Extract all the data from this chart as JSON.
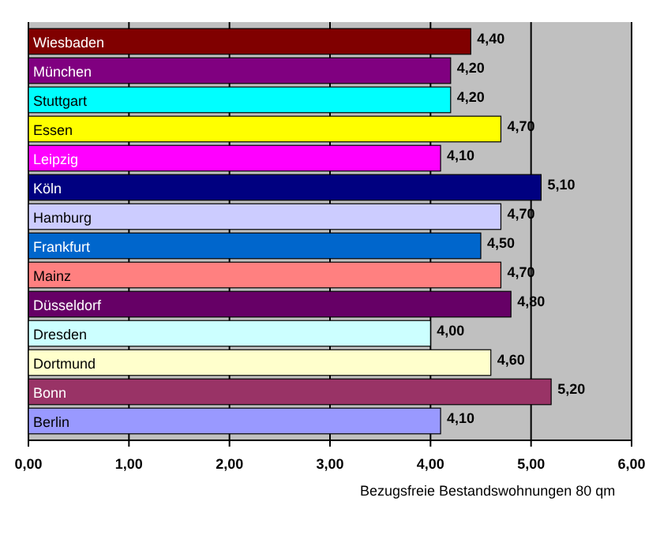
{
  "chart_data": {
    "type": "bar",
    "orientation": "horizontal",
    "categories": [
      "Wiesbaden",
      "München",
      "Stuttgart",
      "Essen",
      "Leipzig",
      "Köln",
      "Hamburg",
      "Frankfurt",
      "Mainz",
      "Düsseldorf",
      "Dresden",
      "Dortmund",
      "Bonn",
      "Berlin"
    ],
    "values": [
      4.4,
      4.2,
      4.2,
      4.7,
      4.1,
      5.1,
      4.7,
      4.5,
      4.7,
      4.8,
      4.0,
      4.6,
      5.2,
      4.1
    ],
    "colors": [
      "#800000",
      "#800080",
      "#00ffff",
      "#ffff00",
      "#ff00ff",
      "#000080",
      "#ccccff",
      "#0066cc",
      "#ff8080",
      "#660066",
      "#ccffff",
      "#ffffcc",
      "#993366",
      "#9999ff"
    ],
    "value_labels": [
      "4,40",
      "4,20",
      "4,20",
      "4,70",
      "4,10",
      "5,10",
      "4,70",
      "4,50",
      "4,70",
      "4,80",
      "4,00",
      "4,60",
      "5,20",
      "4,10"
    ],
    "xlim": [
      0,
      6
    ],
    "xticks": [
      {
        "value": 0,
        "label": "0,00"
      },
      {
        "value": 1,
        "label": "1,00"
      },
      {
        "value": 2,
        "label": "2,00"
      },
      {
        "value": 3,
        "label": "3,00"
      },
      {
        "value": 4,
        "label": "4,00"
      },
      {
        "value": 5,
        "label": "5,00"
      },
      {
        "value": 6,
        "label": "6,00"
      }
    ],
    "grid": "x",
    "annotations": [
      "Bezugsfreie Bestandswohnungen 80 qm"
    ]
  }
}
